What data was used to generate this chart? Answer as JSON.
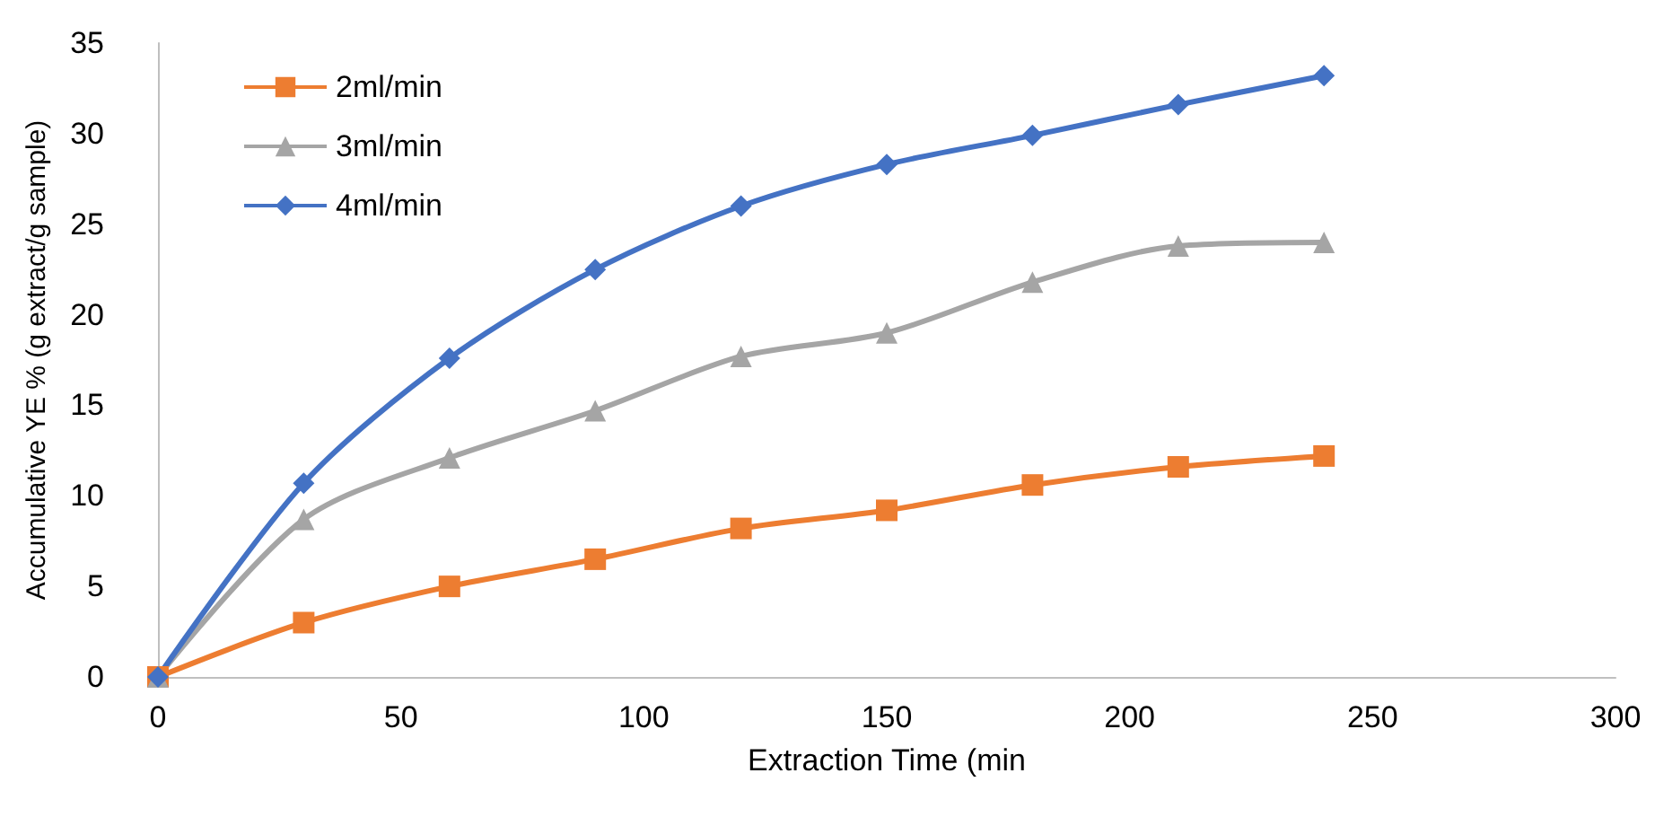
{
  "chart_data": {
    "type": "line",
    "xlabel": "Extraction Time (min",
    "ylabel": "Accumulative YE % (g extract/g sample)",
    "xlim": [
      0,
      300
    ],
    "xticks": [
      0,
      50,
      100,
      150,
      200,
      250,
      300
    ],
    "ylim": [
      0,
      35
    ],
    "yticks": [
      0,
      5,
      10,
      15,
      20,
      25,
      30,
      35
    ],
    "grid": false,
    "legend": "top left",
    "series": [
      {
        "name": "2ml/min",
        "color": "#ed7d31",
        "marker": "square",
        "x": [
          0,
          30,
          60,
          90,
          120,
          150,
          180,
          210,
          240
        ],
        "values": [
          0,
          3.0,
          5.0,
          6.5,
          8.2,
          9.2,
          10.6,
          11.6,
          12.2
        ]
      },
      {
        "name": "3ml/min",
        "color": "#a5a5a5",
        "marker": "triangle",
        "x": [
          0,
          30,
          60,
          90,
          120,
          150,
          180,
          210,
          240
        ],
        "values": [
          0,
          8.7,
          12.1,
          14.7,
          17.7,
          19.0,
          21.8,
          23.8,
          24.0
        ]
      },
      {
        "name": "4ml/min",
        "color": "#4472c4",
        "marker": "diamond",
        "x": [
          0,
          30,
          60,
          90,
          120,
          150,
          180,
          210,
          240
        ],
        "values": [
          0,
          10.7,
          17.6,
          22.5,
          26.0,
          28.3,
          29.9,
          31.6,
          33.2
        ]
      }
    ]
  }
}
